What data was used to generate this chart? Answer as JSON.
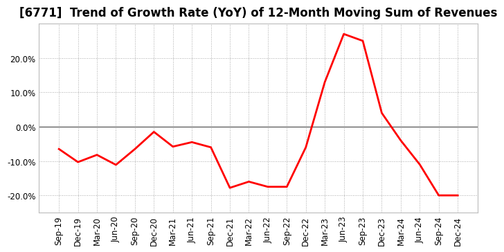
{
  "title": "[6771]  Trend of Growth Rate (YoY) of 12-Month Moving Sum of Revenues",
  "line_color": "#ff0000",
  "line_width": 2.0,
  "background_color": "#ffffff",
  "grid_color": "#aaaaaa",
  "zero_line_color": "#555555",
  "labels": [
    "Sep-19",
    "Dec-19",
    "Mar-20",
    "Jun-20",
    "Sep-20",
    "Dec-20",
    "Mar-21",
    "Jun-21",
    "Sep-21",
    "Dec-21",
    "Mar-22",
    "Jun-22",
    "Sep-22",
    "Dec-22",
    "Mar-23",
    "Jun-23",
    "Sep-23",
    "Dec-23",
    "Mar-24",
    "Jun-24",
    "Sep-24",
    "Dec-24"
  ],
  "values": [
    -0.065,
    -0.103,
    -0.082,
    -0.111,
    -0.065,
    -0.015,
    -0.058,
    -0.045,
    -0.06,
    -0.178,
    -0.16,
    -0.175,
    -0.175,
    -0.06,
    0.13,
    0.27,
    0.25,
    0.04,
    -0.04,
    -0.11,
    -0.2,
    -0.2
  ],
  "ylim": [
    -0.25,
    0.3
  ],
  "yticks": [
    -0.2,
    -0.1,
    0.0,
    0.1,
    0.2
  ],
  "title_fontsize": 12,
  "tick_fontsize": 8.5
}
